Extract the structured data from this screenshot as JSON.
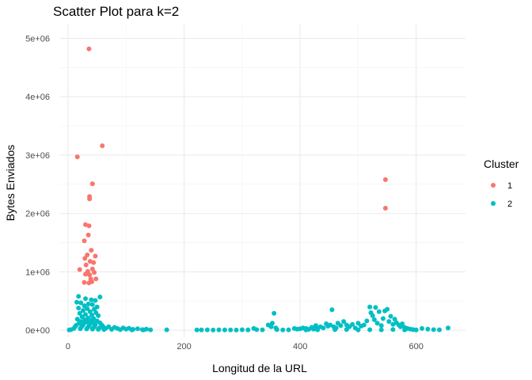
{
  "chart_data": {
    "type": "scatter",
    "title": "Scatter Plot para k=2",
    "xlabel": "Longitud de la URL",
    "ylabel": "Bytes Enviados",
    "xlim": [
      -15,
      685
    ],
    "ylim": [
      -120000,
      5250000
    ],
    "x_ticks": [
      0,
      200,
      400,
      600
    ],
    "x_tick_labels": [
      "0",
      "200",
      "400",
      "600"
    ],
    "y_ticks": [
      0,
      1000000,
      2000000,
      3000000,
      4000000,
      5000000
    ],
    "y_tick_labels": [
      "0e+00",
      "1e+06",
      "2e+06",
      "3e+06",
      "4e+06",
      "5e+06"
    ],
    "grid": true,
    "legend": {
      "title": "Cluster",
      "position": "right"
    },
    "series": [
      {
        "name": "1",
        "color": "#F8766D",
        "points": [
          [
            36,
            4820000
          ],
          [
            16,
            2970000
          ],
          [
            59,
            3160000
          ],
          [
            42,
            2510000
          ],
          [
            37,
            2290000
          ],
          [
            37,
            2250000
          ],
          [
            30,
            1810000
          ],
          [
            36,
            1790000
          ],
          [
            35,
            1630000
          ],
          [
            28,
            1530000
          ],
          [
            40,
            1370000
          ],
          [
            33,
            1290000
          ],
          [
            47,
            1270000
          ],
          [
            29,
            1230000
          ],
          [
            38,
            1180000
          ],
          [
            44,
            1160000
          ],
          [
            31,
            1120000
          ],
          [
            20,
            1040000
          ],
          [
            42,
            1050000
          ],
          [
            34,
            1010000
          ],
          [
            30,
            960000
          ],
          [
            37,
            950000
          ],
          [
            45,
            990000
          ],
          [
            48,
            880000
          ],
          [
            39,
            880000
          ],
          [
            28,
            820000
          ],
          [
            36,
            810000
          ],
          [
            41,
            830000
          ],
          [
            547,
            2580000
          ],
          [
            547,
            2090000
          ]
        ]
      },
      {
        "name": "2",
        "color": "#00BFC4",
        "points": [
          [
            18,
            580000
          ],
          [
            55,
            570000
          ],
          [
            30,
            540000
          ],
          [
            40,
            520000
          ],
          [
            47,
            510000
          ],
          [
            15,
            480000
          ],
          [
            22,
            470000
          ],
          [
            35,
            450000
          ],
          [
            42,
            440000
          ],
          [
            28,
            420000
          ],
          [
            50,
            400000
          ],
          [
            18,
            380000
          ],
          [
            33,
            370000
          ],
          [
            45,
            360000
          ],
          [
            26,
            340000
          ],
          [
            38,
            320000
          ],
          [
            48,
            300000
          ],
          [
            20,
            290000
          ],
          [
            30,
            270000
          ],
          [
            41,
            260000
          ],
          [
            52,
            250000
          ],
          [
            24,
            230000
          ],
          [
            35,
            210000
          ],
          [
            44,
            200000
          ],
          [
            16,
            190000
          ],
          [
            29,
            180000
          ],
          [
            39,
            170000
          ],
          [
            50,
            160000
          ],
          [
            22,
            150000
          ],
          [
            33,
            140000
          ],
          [
            43,
            130000
          ],
          [
            55,
            125000
          ],
          [
            19,
            120000
          ],
          [
            27,
            110000
          ],
          [
            37,
            100000
          ],
          [
            47,
            95000
          ],
          [
            58,
            90000
          ],
          [
            14,
            85000
          ],
          [
            25,
            80000
          ],
          [
            36,
            75000
          ],
          [
            46,
            70000
          ],
          [
            60,
            65000
          ],
          [
            12,
            60000
          ],
          [
            23,
            55000
          ],
          [
            34,
            50000
          ],
          [
            44,
            45000
          ],
          [
            54,
            40000
          ],
          [
            65,
            35000
          ],
          [
            10,
            30000
          ],
          [
            21,
            25000
          ],
          [
            32,
            22000
          ],
          [
            42,
            18000
          ],
          [
            52,
            15000
          ],
          [
            62,
            12000
          ],
          [
            5,
            10000
          ],
          [
            2,
            5000
          ],
          [
            70,
            60000
          ],
          [
            80,
            50000
          ],
          [
            85,
            30000
          ],
          [
            95,
            40000
          ],
          [
            100,
            20000
          ],
          [
            105,
            35000
          ],
          [
            112,
            15000
          ],
          [
            120,
            25000
          ],
          [
            128,
            10000
          ],
          [
            135,
            20000
          ],
          [
            142,
            8000
          ],
          [
            75,
            15000
          ],
          [
            90,
            10000
          ],
          [
            110,
            5000
          ],
          [
            130,
            5000
          ],
          [
            170,
            8000
          ],
          [
            222,
            6000
          ],
          [
            230,
            5000
          ],
          [
            240,
            8000
          ],
          [
            250,
            4000
          ],
          [
            260,
            7000
          ],
          [
            270,
            5000
          ],
          [
            280,
            6000
          ],
          [
            290,
            4000
          ],
          [
            300,
            9000
          ],
          [
            310,
            5000
          ],
          [
            320,
            30000
          ],
          [
            325,
            10000
          ],
          [
            335,
            8000
          ],
          [
            345,
            90000
          ],
          [
            350,
            60000
          ],
          [
            355,
            290000
          ],
          [
            352,
            120000
          ],
          [
            358,
            40000
          ],
          [
            360,
            10000
          ],
          [
            370,
            6000
          ],
          [
            380,
            8000
          ],
          [
            390,
            30000
          ],
          [
            395,
            20000
          ],
          [
            400,
            25000
          ],
          [
            405,
            40000
          ],
          [
            410,
            30000
          ],
          [
            415,
            15000
          ],
          [
            420,
            50000
          ],
          [
            423,
            20000
          ],
          [
            427,
            80000
          ],
          [
            430,
            30000
          ],
          [
            435,
            60000
          ],
          [
            440,
            40000
          ],
          [
            445,
            110000
          ],
          [
            448,
            70000
          ],
          [
            452,
            90000
          ],
          [
            455,
            350000
          ],
          [
            458,
            60000
          ],
          [
            462,
            40000
          ],
          [
            465,
            120000
          ],
          [
            470,
            80000
          ],
          [
            475,
            150000
          ],
          [
            480,
            90000
          ],
          [
            485,
            60000
          ],
          [
            490,
            100000
          ],
          [
            495,
            40000
          ],
          [
            500,
            120000
          ],
          [
            505,
            70000
          ],
          [
            510,
            90000
          ],
          [
            515,
            160000
          ],
          [
            520,
            400000
          ],
          [
            522,
            300000
          ],
          [
            525,
            250000
          ],
          [
            528,
            180000
          ],
          [
            530,
            390000
          ],
          [
            533,
            120000
          ],
          [
            536,
            320000
          ],
          [
            540,
            80000
          ],
          [
            543,
            200000
          ],
          [
            546,
            330000
          ],
          [
            550,
            360000
          ],
          [
            553,
            150000
          ],
          [
            556,
            240000
          ],
          [
            560,
            100000
          ],
          [
            563,
            190000
          ],
          [
            566,
            130000
          ],
          [
            570,
            90000
          ],
          [
            573,
            60000
          ],
          [
            576,
            110000
          ],
          [
            580,
            50000
          ],
          [
            585,
            30000
          ],
          [
            590,
            20000
          ],
          [
            595,
            10000
          ],
          [
            600,
            5000
          ],
          [
            610,
            30000
          ],
          [
            620,
            20000
          ],
          [
            630,
            10000
          ],
          [
            640,
            8000
          ],
          [
            655,
            40000
          ],
          [
            410,
            5000
          ],
          [
            430,
            8000
          ],
          [
            460,
            10000
          ],
          [
            480,
            12000
          ],
          [
            500,
            6000
          ],
          [
            520,
            9000
          ],
          [
            540,
            7000
          ],
          [
            560,
            11000
          ],
          [
            580,
            6000
          ]
        ]
      }
    ]
  }
}
